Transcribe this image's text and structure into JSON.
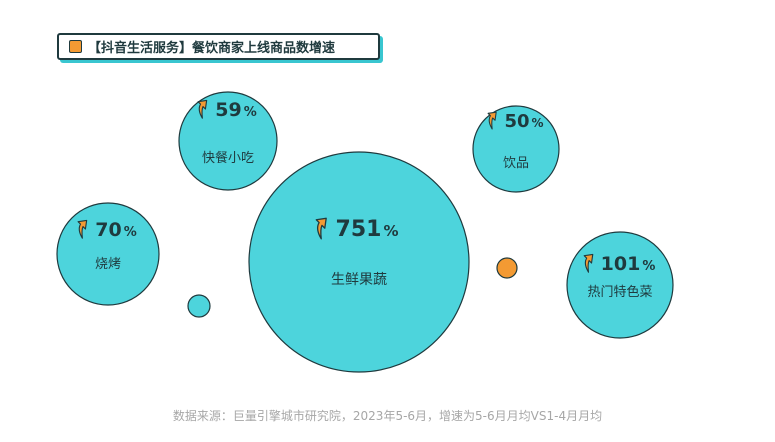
{
  "title": "【抖音生活服务】餐饮商家上线商品数增速",
  "source_note": "数据来源：巨量引擎城市研究院，2023年5-6月，增速为5-6月月均VS1-4月月均",
  "colors": {
    "bubble": "#4dd4dc",
    "outline": "#1f3a3e",
    "accent": "#f39a33",
    "arrow_outline": "#1f3a3e"
  },
  "icon": "up-arrow-icon",
  "bubbles": [
    {
      "name": "生鲜果蔬",
      "value": 751,
      "label": "751",
      "unit": "%"
    },
    {
      "name": "热门特色菜",
      "value": 101,
      "label": "101",
      "unit": "%"
    },
    {
      "name": "烧烤",
      "value": 70,
      "label": "70",
      "unit": "%"
    },
    {
      "name": "快餐小吃",
      "value": 59,
      "label": "59",
      "unit": "%"
    },
    {
      "name": "饮品",
      "value": 50,
      "label": "50",
      "unit": "%"
    }
  ]
}
